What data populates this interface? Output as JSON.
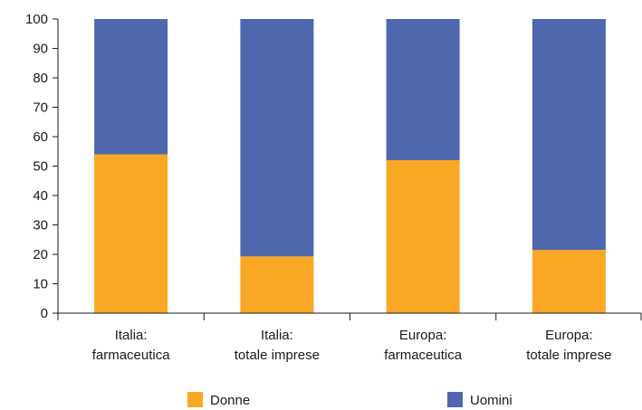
{
  "chart_data": {
    "type": "bar",
    "stacked": true,
    "categories": [
      [
        "Italia:",
        "farmaceutica"
      ],
      [
        "Italia:",
        "totale imprese"
      ],
      [
        "Europa:",
        "farmaceutica"
      ],
      [
        "Europa:",
        "totale imprese"
      ]
    ],
    "series": [
      {
        "name": "Donne",
        "color": "#f9a825",
        "values": [
          54,
          19.3,
          52,
          21.5
        ]
      },
      {
        "name": "Uomini",
        "color": "#4f67ac",
        "values": [
          46,
          80.7,
          48,
          78.5
        ]
      }
    ],
    "ylim": [
      0,
      100
    ],
    "yticks": [
      0,
      10,
      20,
      30,
      40,
      50,
      60,
      70,
      80,
      90,
      100
    ],
    "grid": false,
    "legend": "bottom"
  }
}
